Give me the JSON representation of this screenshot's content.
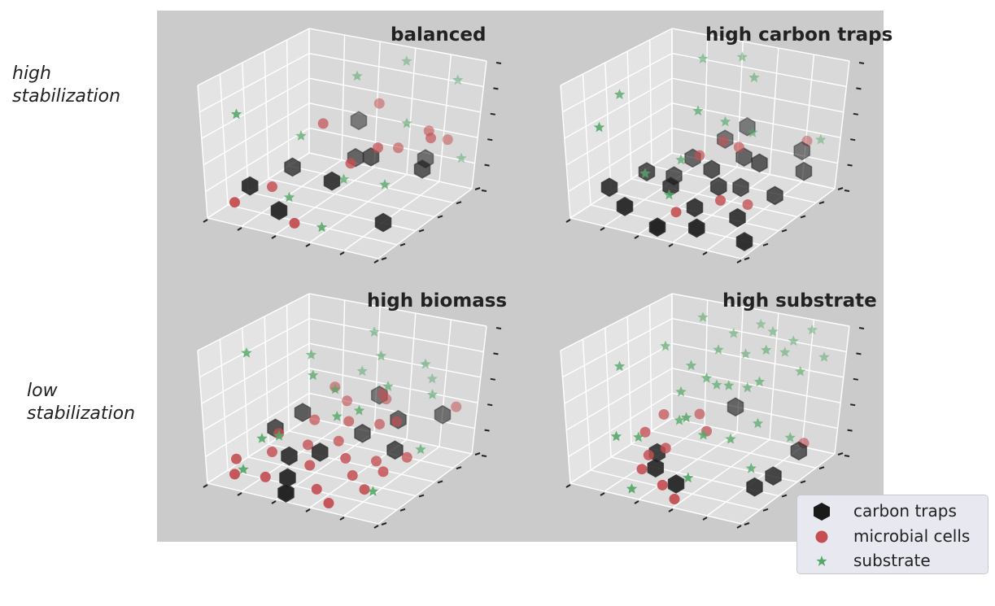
{
  "row_labels": [
    "high\nstabilization",
    "low\nstabilization"
  ],
  "legend": [
    {
      "label": "carbon traps",
      "marker": "hexagon",
      "color": "#1a1a1a"
    },
    {
      "label": "microbial cells",
      "marker": "circle",
      "color": "#c44e52"
    },
    {
      "label": "substrate",
      "marker": "star",
      "color": "#55a868"
    }
  ],
  "chart_data": [
    {
      "type": "scatter",
      "title": "balanced",
      "series": [
        {
          "name": "carbon traps",
          "points": [
            [
              0.1,
              0.25,
              0.15
            ],
            [
              0.3,
              0.2,
              0.05
            ],
            [
              0.55,
              0.3,
              0.3
            ],
            [
              0.85,
              0.3,
              0.08
            ],
            [
              0.8,
              0.8,
              0.3
            ],
            [
              0.45,
              0.7,
              0.25
            ],
            [
              0.2,
              0.5,
              0.2
            ],
            [
              0.9,
              0.6,
              0.35
            ],
            [
              0.35,
              0.9,
              0.4
            ],
            [
              0.6,
              0.6,
              0.35
            ]
          ]
        },
        {
          "name": "microbial cells",
          "points": [
            [
              0.1,
              0.1,
              0.1
            ],
            [
              0.2,
              0.3,
              0.15
            ],
            [
              0.45,
              0.1,
              0.05
            ],
            [
              0.6,
              0.4,
              0.4
            ],
            [
              0.7,
              0.7,
              0.4
            ],
            [
              0.85,
              0.75,
              0.55
            ],
            [
              0.9,
              0.85,
              0.45
            ],
            [
              0.5,
              0.85,
              0.6
            ],
            [
              0.35,
              0.55,
              0.55
            ],
            [
              0.95,
              0.6,
              0.6
            ],
            [
              0.7,
              0.5,
              0.5
            ]
          ]
        },
        {
          "name": "substrate",
          "points": [
            [
              0.05,
              0.2,
              0.7
            ],
            [
              0.25,
              0.5,
              0.45
            ],
            [
              0.4,
              0.8,
              0.8
            ],
            [
              0.6,
              0.95,
              0.9
            ],
            [
              0.75,
              0.7,
              0.6
            ],
            [
              0.9,
              0.95,
              0.85
            ],
            [
              0.5,
              0.5,
              0.2
            ],
            [
              0.8,
              0.4,
              0.3
            ],
            [
              0.3,
              0.3,
              0.1
            ],
            [
              0.95,
              0.9,
              0.3
            ],
            [
              0.55,
              0.2,
              0.0
            ]
          ]
        }
      ]
    },
    {
      "type": "scatter",
      "title": "high carbon traps",
      "series": [
        {
          "name": "carbon traps",
          "points": [
            [
              0.05,
              0.3,
              0.1
            ],
            [
              0.15,
              0.5,
              0.15
            ],
            [
              0.3,
              0.7,
              0.2
            ],
            [
              0.4,
              0.85,
              0.3
            ],
            [
              0.2,
              0.2,
              0.05
            ],
            [
              0.35,
              0.4,
              0.15
            ],
            [
              0.5,
              0.55,
              0.25
            ],
            [
              0.6,
              0.7,
              0.3
            ],
            [
              0.55,
              0.3,
              0.1
            ],
            [
              0.7,
              0.5,
              0.2
            ],
            [
              0.8,
              0.3,
              0.1
            ],
            [
              0.9,
              0.5,
              0.2
            ],
            [
              0.85,
              0.85,
              0.35
            ],
            [
              0.95,
              0.7,
              0.3
            ],
            [
              0.65,
              0.15,
              0.05
            ],
            [
              0.45,
              0.1,
              0.02
            ],
            [
              0.75,
              0.6,
              0.35
            ],
            [
              0.25,
              0.6,
              0.1
            ],
            [
              0.9,
              0.2,
              0.0
            ],
            [
              0.6,
              0.45,
              0.2
            ],
            [
              0.5,
              0.9,
              0.4
            ]
          ]
        },
        {
          "name": "microbial cells",
          "points": [
            [
              0.4,
              0.6,
              0.3
            ],
            [
              0.6,
              0.65,
              0.4
            ],
            [
              0.7,
              0.3,
              0.2
            ],
            [
              0.8,
              0.4,
              0.15
            ],
            [
              0.5,
              0.2,
              0.1
            ],
            [
              0.85,
              0.9,
              0.4
            ],
            [
              0.45,
              0.75,
              0.35
            ]
          ]
        },
        {
          "name": "substrate",
          "points": [
            [
              0.05,
              0.4,
              0.75
            ],
            [
              0.05,
              0.2,
              0.6
            ],
            [
              0.3,
              0.8,
              0.9
            ],
            [
              0.5,
              0.85,
              0.95
            ],
            [
              0.6,
              0.8,
              0.85
            ],
            [
              0.45,
              0.5,
              0.7
            ],
            [
              0.55,
              0.6,
              0.6
            ],
            [
              0.2,
              0.4,
              0.2
            ],
            [
              0.65,
              0.7,
              0.5
            ],
            [
              0.9,
              0.95,
              0.4
            ],
            [
              0.4,
              0.3,
              0.15
            ],
            [
              0.35,
              0.5,
              0.3
            ]
          ]
        }
      ]
    },
    {
      "type": "scatter",
      "title": "high biomass",
      "series": [
        {
          "name": "carbon traps",
          "points": [
            [
              0.1,
              0.5,
              0.2
            ],
            [
              0.3,
              0.3,
              0.15
            ],
            [
              0.45,
              0.35,
              0.2
            ],
            [
              0.35,
              0.2,
              0.05
            ],
            [
              0.4,
              0.1,
              0.0
            ],
            [
              0.55,
              0.6,
              0.25
            ],
            [
              0.7,
              0.7,
              0.35
            ],
            [
              0.8,
              0.5,
              0.25
            ],
            [
              0.9,
              0.8,
              0.4
            ],
            [
              0.2,
              0.6,
              0.3
            ],
            [
              0.5,
              0.85,
              0.4
            ]
          ]
        },
        {
          "name": "microbial cells",
          "points": [
            [
              0.05,
              0.2,
              0.1
            ],
            [
              0.1,
              0.1,
              0.05
            ],
            [
              0.2,
              0.3,
              0.15
            ],
            [
              0.25,
              0.15,
              0.05
            ],
            [
              0.35,
              0.4,
              0.2
            ],
            [
              0.3,
              0.55,
              0.3
            ],
            [
              0.45,
              0.25,
              0.15
            ],
            [
              0.5,
              0.45,
              0.25
            ],
            [
              0.55,
              0.15,
              0.05
            ],
            [
              0.6,
              0.35,
              0.2
            ],
            [
              0.65,
              0.6,
              0.35
            ],
            [
              0.7,
              0.25,
              0.15
            ],
            [
              0.75,
              0.4,
              0.2
            ],
            [
              0.8,
              0.2,
              0.1
            ],
            [
              0.85,
              0.3,
              0.2
            ],
            [
              0.9,
              0.45,
              0.25
            ],
            [
              0.95,
              0.85,
              0.45
            ],
            [
              0.4,
              0.7,
              0.4
            ],
            [
              0.55,
              0.8,
              0.45
            ],
            [
              0.3,
              0.75,
              0.45
            ],
            [
              0.65,
              0.1,
              0.0
            ],
            [
              0.15,
              0.45,
              0.2
            ],
            [
              0.5,
              0.55,
              0.35
            ],
            [
              0.75,
              0.6,
              0.4
            ],
            [
              0.6,
              0.75,
              0.45
            ]
          ]
        },
        {
          "name": "substrate",
          "points": [
            [
              0.05,
              0.3,
              0.85
            ],
            [
              0.25,
              0.6,
              0.75
            ],
            [
              0.35,
              0.45,
              0.7
            ],
            [
              0.45,
              0.5,
              0.6
            ],
            [
              0.5,
              0.8,
              0.9
            ],
            [
              0.6,
              0.7,
              0.8
            ],
            [
              0.7,
              0.6,
              0.65
            ],
            [
              0.8,
              0.8,
              0.75
            ],
            [
              0.9,
              0.7,
              0.6
            ],
            [
              0.55,
              0.35,
              0.5
            ],
            [
              0.4,
              0.85,
              0.55
            ],
            [
              0.2,
              0.2,
              0.3
            ],
            [
              0.85,
              0.2,
              0.1
            ],
            [
              0.15,
              0.1,
              0.1
            ],
            [
              0.65,
              0.4,
              0.55
            ],
            [
              0.3,
              0.2,
              0.35
            ],
            [
              0.75,
              0.95,
              0.55
            ],
            [
              0.95,
              0.5,
              0.3
            ]
          ]
        }
      ]
    },
    {
      "type": "scatter",
      "title": "high substrate",
      "series": [
        {
          "name": "carbon traps",
          "points": [
            [
              0.35,
              0.25,
              0.1
            ],
            [
              0.3,
              0.35,
              0.15
            ],
            [
              0.5,
              0.2,
              0.05
            ],
            [
              0.9,
              0.3,
              0.1
            ],
            [
              0.95,
              0.4,
              0.15
            ],
            [
              0.98,
              0.6,
              0.25
            ],
            [
              0.55,
              0.7,
              0.4
            ]
          ]
        },
        {
          "name": "microbial cells",
          "points": [
            [
              0.2,
              0.4,
              0.25
            ],
            [
              0.25,
              0.5,
              0.35
            ],
            [
              0.3,
              0.2,
              0.1
            ],
            [
              0.35,
              0.35,
              0.2
            ],
            [
              0.45,
              0.15,
              0.05
            ],
            [
              0.5,
              0.5,
              0.3
            ],
            [
              0.55,
              0.1,
              0.0
            ],
            [
              0.95,
              0.7,
              0.25
            ],
            [
              0.4,
              0.6,
              0.35
            ],
            [
              0.28,
              0.3,
              0.15
            ]
          ]
        },
        {
          "name": "substrate",
          "points": [
            [
              0.05,
              0.4,
              0.7
            ],
            [
              0.2,
              0.6,
              0.8
            ],
            [
              0.3,
              0.8,
              0.95
            ],
            [
              0.35,
              0.6,
              0.7
            ],
            [
              0.45,
              0.7,
              0.8
            ],
            [
              0.5,
              0.5,
              0.7
            ],
            [
              0.55,
              0.8,
              0.75
            ],
            [
              0.6,
              0.55,
              0.65
            ],
            [
              0.65,
              0.9,
              0.9
            ],
            [
              0.7,
              0.75,
              0.85
            ],
            [
              0.75,
              0.6,
              0.7
            ],
            [
              0.8,
              0.85,
              0.9
            ],
            [
              0.85,
              0.95,
              0.95
            ],
            [
              0.9,
              0.75,
              0.75
            ],
            [
              0.95,
              0.9,
              0.8
            ],
            [
              0.25,
              0.25,
              0.3
            ],
            [
              0.4,
              0.4,
              0.4
            ],
            [
              0.5,
              0.3,
              0.5
            ],
            [
              0.6,
              0.3,
              0.4
            ],
            [
              0.7,
              0.4,
              0.35
            ],
            [
              0.8,
              0.5,
              0.45
            ],
            [
              0.15,
              0.2,
              0.3
            ],
            [
              0.45,
              0.85,
              0.85
            ],
            [
              0.55,
              0.95,
              0.9
            ],
            [
              0.65,
              0.65,
              0.6
            ],
            [
              0.75,
              0.85,
              0.8
            ],
            [
              0.35,
              0.5,
              0.55
            ],
            [
              0.85,
              0.35,
              0.2
            ],
            [
              0.6,
              0.15,
              0.15
            ],
            [
              0.3,
              0.1,
              0.0
            ],
            [
              0.9,
              0.65,
              0.3
            ],
            [
              0.5,
              0.6,
              0.6
            ]
          ]
        }
      ]
    }
  ]
}
